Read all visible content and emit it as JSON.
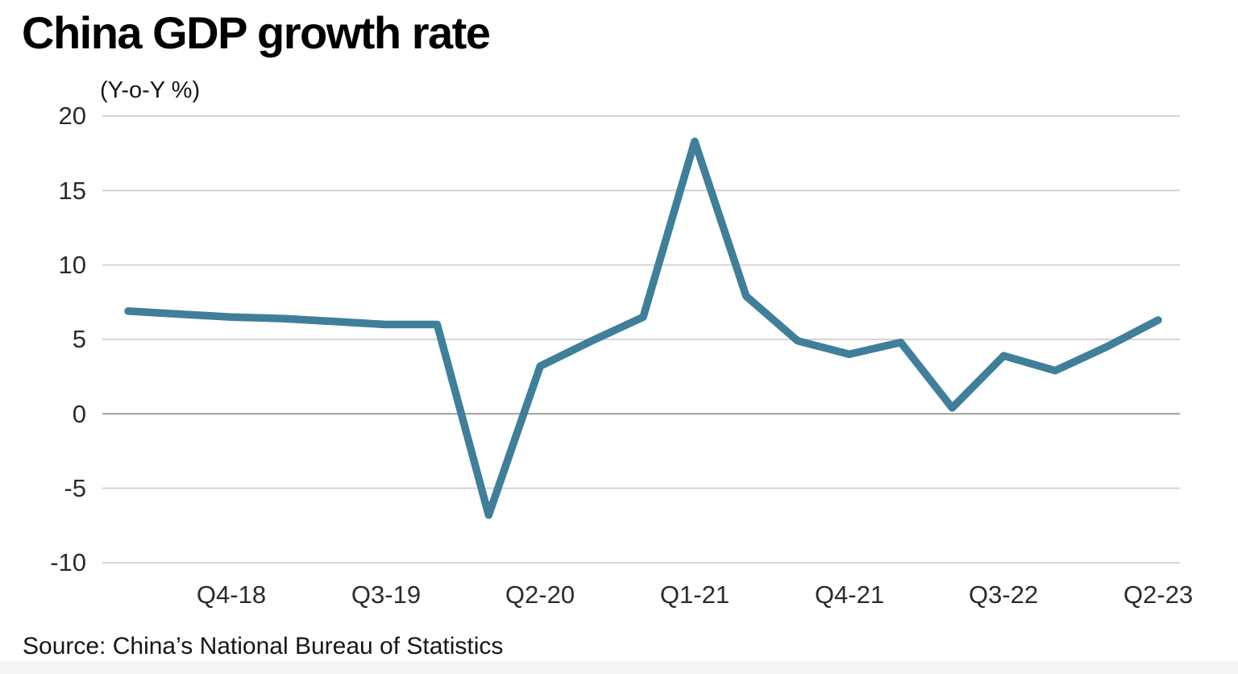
{
  "title": "China GDP growth rate",
  "subtitle": "(Y-o-Y %)",
  "source": "Source: China’s National Bureau of Statistics",
  "colors": {
    "line": "#3f7f9a",
    "gridline": "#d4d4d4",
    "zero_gridline": "#9e9e9e",
    "tick_text": "#2b2b2b",
    "title_text": "#000000",
    "footer_band": "#f5f5f5"
  },
  "chart_data": {
    "type": "line",
    "title": "China GDP growth rate",
    "unit_note": "(Y-o-Y %)",
    "x": [
      "Q2-18",
      "Q3-18",
      "Q4-18",
      "Q1-19",
      "Q2-19",
      "Q3-19",
      "Q4-19",
      "Q1-20",
      "Q2-20",
      "Q3-20",
      "Q4-20",
      "Q1-21",
      "Q2-21",
      "Q3-21",
      "Q4-21",
      "Q1-22",
      "Q2-22",
      "Q3-22",
      "Q4-22",
      "Q1-23",
      "Q2-23"
    ],
    "values": [
      6.9,
      6.7,
      6.5,
      6.4,
      6.2,
      6.0,
      6.0,
      -6.8,
      3.2,
      4.9,
      6.5,
      18.3,
      7.9,
      4.9,
      4.0,
      4.8,
      0.4,
      3.9,
      2.9,
      4.5,
      6.3
    ],
    "x_tick_labels": [
      "Q4-18",
      "Q3-19",
      "Q2-20",
      "Q1-21",
      "Q4-21",
      "Q3-22",
      "Q2-23"
    ],
    "x_tick_indices": [
      2,
      5,
      8,
      11,
      14,
      17,
      20
    ],
    "y_ticks": [
      20,
      15,
      10,
      5,
      0,
      -5,
      -10
    ],
    "ylim": [
      -10,
      20
    ],
    "grid": true,
    "legend": false,
    "source": "Source: China’s National Bureau of Statistics"
  }
}
